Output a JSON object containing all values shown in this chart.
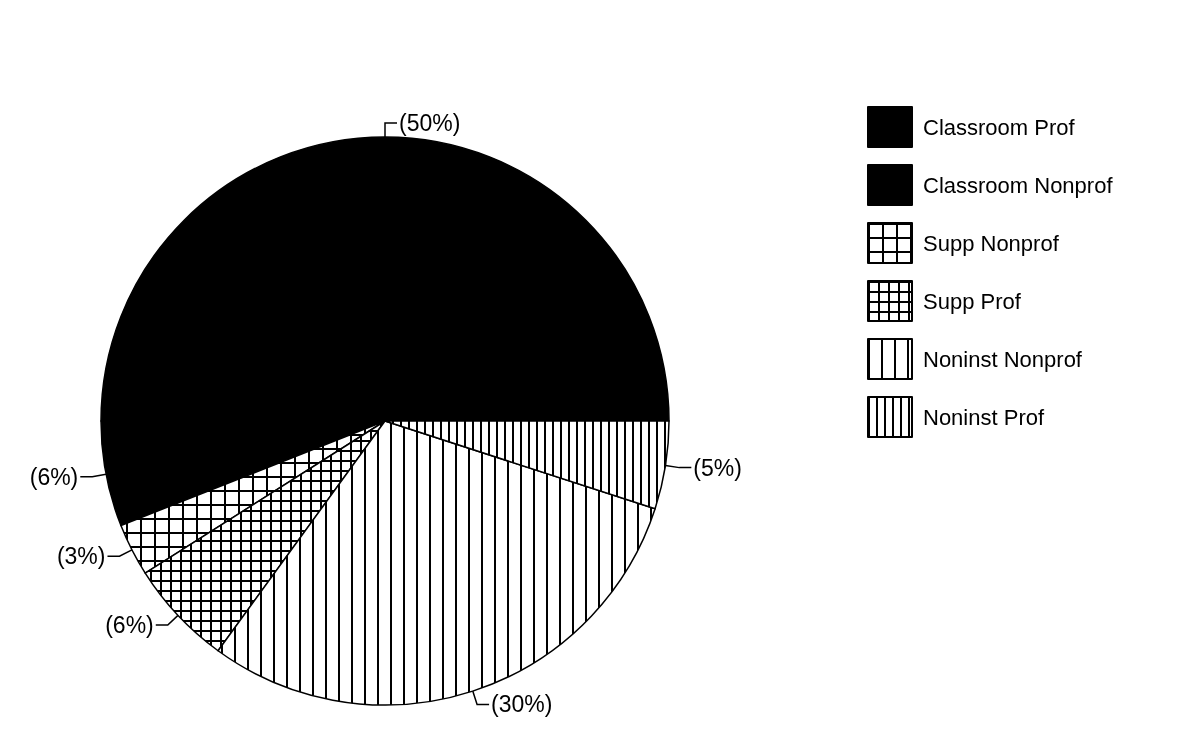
{
  "chart_data": {
    "type": "pie",
    "categories": [
      "Classroom Prof",
      "Classroom Nonprof",
      "Supp Nonprof",
      "Supp Prof",
      "Noninst Nonprof",
      "Noninst Prof"
    ],
    "values": [
      50,
      6,
      3,
      6,
      30,
      5
    ],
    "colors": [
      "#000000",
      "#000000",
      "#000000",
      "#000000",
      "#000000",
      "#000000"
    ],
    "value_labels": [
      "(50%)",
      "(6%)",
      "(3%)",
      "(6%)",
      "(30%)",
      "(5%)"
    ],
    "legend": "top right"
  }
}
